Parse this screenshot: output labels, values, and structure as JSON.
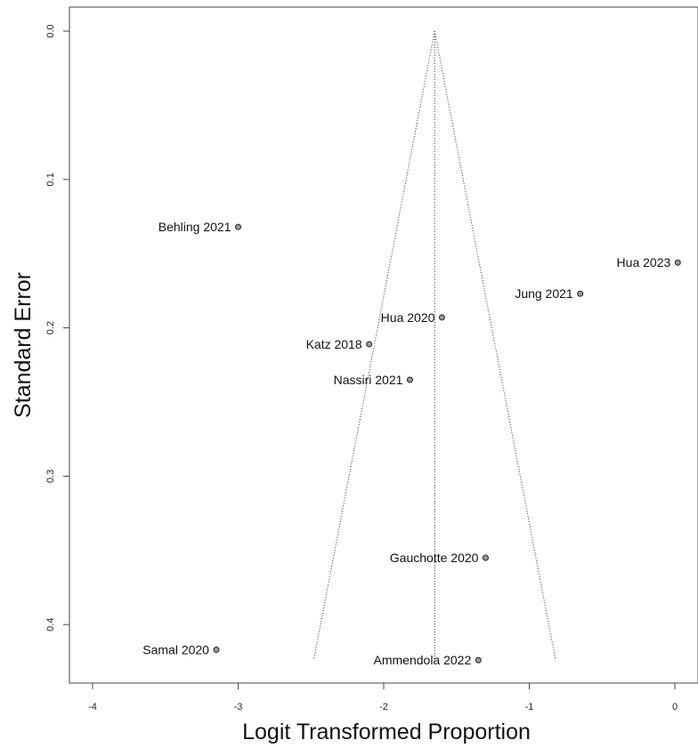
{
  "chart_data": {
    "type": "scatter",
    "chart_subtype": "funnel plot",
    "xlabel": "Logit Transformed Proportion",
    "ylabel": "Standard Error",
    "xlim": [
      -4.15,
      0.15
    ],
    "ylim": [
      0,
      0.44
    ],
    "y_reversed": true,
    "x_ticks": [
      -4,
      -3,
      -2,
      -1,
      0
    ],
    "x_tick_labels": [
      "-4",
      "-3",
      "-2",
      "-1",
      "0"
    ],
    "y_ticks": [
      0.0,
      0.1,
      0.2,
      0.3,
      0.4
    ],
    "y_tick_labels": [
      "0.0",
      "0.1",
      "0.2",
      "0.3",
      "0.4"
    ],
    "grid": false,
    "pooled_estimate": -1.65,
    "funnel_max_se": 0.424,
    "point_color": "#9a9a9a",
    "studies": [
      {
        "label": "Behling 2021",
        "x": -3.0,
        "y": 0.132
      },
      {
        "label": "Hua 2023",
        "x": 0.02,
        "y": 0.156
      },
      {
        "label": "Jung 2021",
        "x": -0.65,
        "y": 0.177
      },
      {
        "label": "Hua 2020",
        "x": -1.6,
        "y": 0.193
      },
      {
        "label": "Katz 2018",
        "x": -2.1,
        "y": 0.211
      },
      {
        "label": "Nassiri 2021",
        "x": -1.82,
        "y": 0.235
      },
      {
        "label": "Gauchotte 2020",
        "x": -1.3,
        "y": 0.355
      },
      {
        "label": "Samal 2020",
        "x": -3.15,
        "y": 0.417
      },
      {
        "label": "Ammendola 2022",
        "x": -1.35,
        "y": 0.424
      }
    ]
  }
}
